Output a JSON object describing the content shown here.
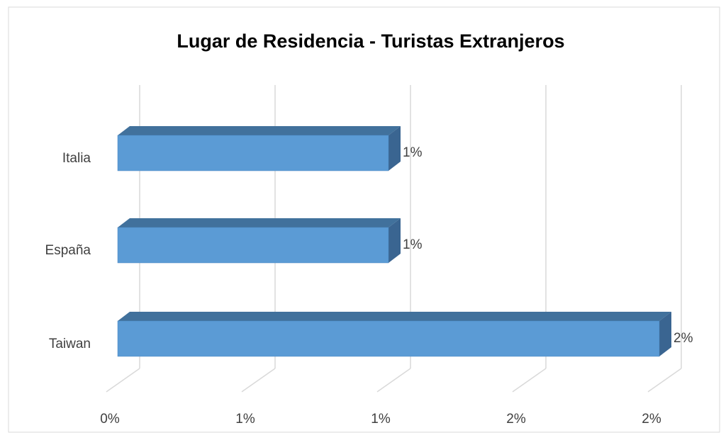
{
  "chart_data": {
    "type": "bar3d_horizontal",
    "title": "Lugar de Residencia - Turistas Extranjeros",
    "categories": [
      "Italia",
      "España",
      "Taiwan"
    ],
    "values": [
      1,
      1,
      2
    ],
    "value_labels": [
      "1%",
      "1%",
      "2%"
    ],
    "color": "#5b9bd5",
    "xlim": [
      0,
      2
    ],
    "xticks": [
      {
        "value": 0,
        "label": "0%"
      },
      {
        "value": 0.5,
        "label": "1%"
      },
      {
        "value": 1,
        "label": "1%"
      },
      {
        "value": 1.5,
        "label": "2%"
      },
      {
        "value": 2,
        "label": "2%"
      }
    ],
    "grid": true
  }
}
